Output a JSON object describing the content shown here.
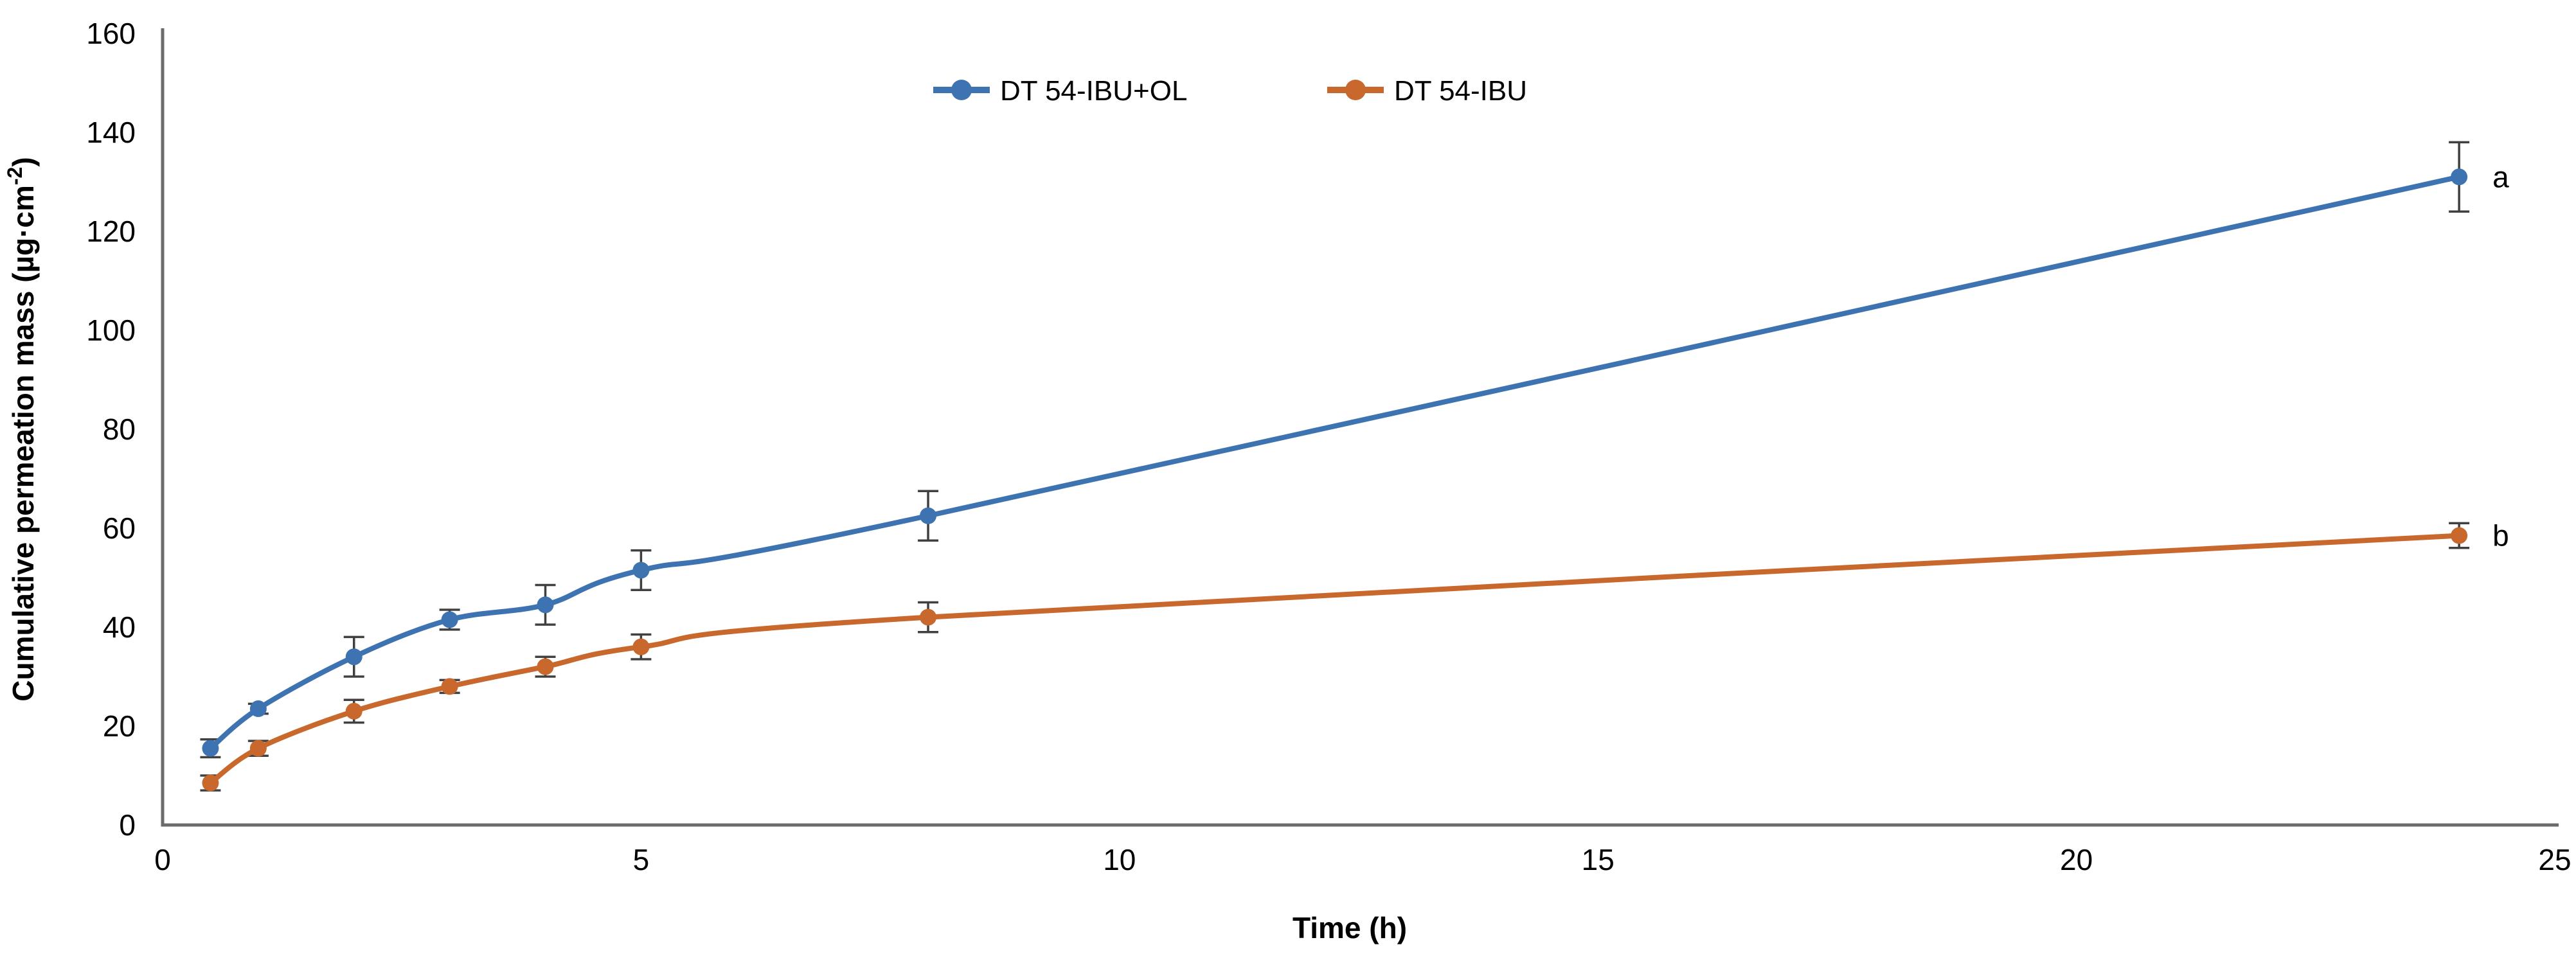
{
  "figure": {
    "background": "#ffffff",
    "text_color": "#000000",
    "axis_color": "#6b6b6b",
    "error_bar_color": "#404040"
  },
  "chart_data": {
    "type": "line",
    "title": "",
    "xlabel": "Time (h)",
    "ylabel": "Cumulative permeation mass (µg·cm⁻²)",
    "ylabel_parts": {
      "base": "Cumulative permeation mass (µg·cm",
      "sup": "-2",
      "end": ")"
    },
    "xlim": [
      0,
      25
    ],
    "ylim": [
      0,
      160
    ],
    "xticks": [
      0,
      5,
      10,
      15,
      20,
      25
    ],
    "yticks": [
      0,
      20,
      40,
      60,
      80,
      100,
      120,
      140,
      160
    ],
    "grid": false,
    "legend_position": "top-center",
    "marker": "circle",
    "x": [
      0.5,
      1,
      2,
      3,
      4,
      5,
      8,
      24
    ],
    "series": [
      {
        "name": "DT 54-IBU+OL",
        "color": "#3E73B2",
        "values": [
          15.5,
          23.5,
          34,
          41.5,
          44.5,
          51.5,
          62.5,
          131
        ],
        "errors": [
          1.8,
          1.0,
          4.0,
          2.0,
          4.0,
          4.0,
          5.0,
          7.0
        ],
        "annotation": "a"
      },
      {
        "name": "DT 54-IBU",
        "color": "#C8682C",
        "values": [
          8.5,
          15.5,
          23,
          28,
          32,
          36,
          42,
          58.5
        ],
        "errors": [
          1.5,
          1.5,
          2.3,
          1.3,
          2.0,
          2.5,
          3.0,
          2.5
        ],
        "annotation": "b"
      }
    ]
  }
}
